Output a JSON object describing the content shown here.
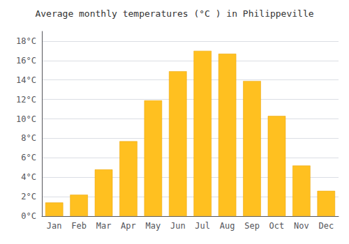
{
  "chart_data": {
    "type": "bar",
    "title": "Average monthly temperatures (°C ) in Philippeville",
    "categories": [
      "Jan",
      "Feb",
      "Mar",
      "Apr",
      "May",
      "Jun",
      "Jul",
      "Aug",
      "Sep",
      "Oct",
      "Nov",
      "Dec"
    ],
    "values": [
      1.4,
      2.2,
      4.8,
      7.7,
      11.9,
      14.9,
      17.0,
      16.7,
      13.9,
      10.3,
      5.2,
      2.6
    ],
    "color": "#FFC020",
    "ylim": [
      0,
      19
    ],
    "yticks": [
      {
        "value": 0,
        "label": "0°C"
      },
      {
        "value": 2,
        "label": "2°C"
      },
      {
        "value": 4,
        "label": "4°C"
      },
      {
        "value": 6,
        "label": "6°C"
      },
      {
        "value": 8,
        "label": "8°C"
      },
      {
        "value": 10,
        "label": "10°C"
      },
      {
        "value": 12,
        "label": "12°C"
      },
      {
        "value": 14,
        "label": "14°C"
      },
      {
        "value": 16,
        "label": "16°C"
      },
      {
        "value": 18,
        "label": "18°C"
      }
    ],
    "grid": true
  }
}
